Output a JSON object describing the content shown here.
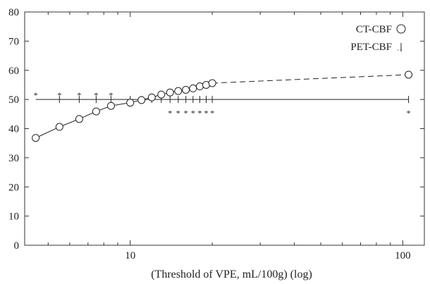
{
  "chart_data": {
    "type": "line",
    "title": "",
    "xlabel": "(Threshold of VPE, mL/100g) (log)",
    "ylabel": "",
    "xscale": "log",
    "xlim": [
      4.1,
      120
    ],
    "ylim": [
      0,
      80
    ],
    "x_tick_labels": [
      "10",
      "100"
    ],
    "y_tick_labels": [
      "0",
      "10",
      "20",
      "30",
      "40",
      "50",
      "60",
      "70",
      "80"
    ],
    "grid": false,
    "legend_position": "top-right",
    "series": [
      {
        "name": "CT-CBF",
        "marker": "circle",
        "x": [
          4.5,
          5.5,
          6.5,
          7.5,
          8.5,
          10,
          11,
          12,
          13,
          14,
          15,
          16,
          17,
          18,
          19,
          20,
          105
        ],
        "y": [
          36.8,
          40.6,
          43.3,
          45.9,
          47.8,
          48.9,
          49.8,
          50.7,
          51.7,
          52.4,
          52.9,
          53.3,
          53.8,
          54.5,
          55.0,
          55.6,
          58.5
        ],
        "solid_until_x": 20
      },
      {
        "name": "PET-CBF",
        "marker": "vertical-line",
        "y_constant": 50,
        "x": [
          5.5,
          6.5,
          7.5,
          8.5,
          10,
          11,
          12,
          13,
          14,
          15,
          16,
          17,
          18,
          19,
          20,
          105
        ]
      }
    ],
    "annotations": [
      {
        "text": "*",
        "x": 4.5,
        "position": "above",
        "y": 51.5
      },
      {
        "text": "*",
        "x": 5.5,
        "position": "above",
        "y": 51.5
      },
      {
        "text": "*",
        "x": 6.5,
        "position": "above",
        "y": 51.5
      },
      {
        "text": "*",
        "x": 7.5,
        "position": "above",
        "y": 51.5
      },
      {
        "text": "*",
        "x": 8.5,
        "position": "above",
        "y": 51.5
      },
      {
        "text": "*",
        "x": 14,
        "position": "below",
        "y": 46.5
      },
      {
        "text": "*",
        "x": 15,
        "position": "below",
        "y": 46.5
      },
      {
        "text": "*",
        "x": 16,
        "position": "below",
        "y": 46.5
      },
      {
        "text": "*",
        "x": 17,
        "position": "below",
        "y": 46.5
      },
      {
        "text": "*",
        "x": 18,
        "position": "below",
        "y": 46.5
      },
      {
        "text": "*",
        "x": 19,
        "position": "below",
        "y": 46.5
      },
      {
        "text": "*",
        "x": 20,
        "position": "below",
        "y": 46.5
      },
      {
        "text": "*",
        "x": 105,
        "position": "below",
        "y": 46.5
      }
    ]
  }
}
